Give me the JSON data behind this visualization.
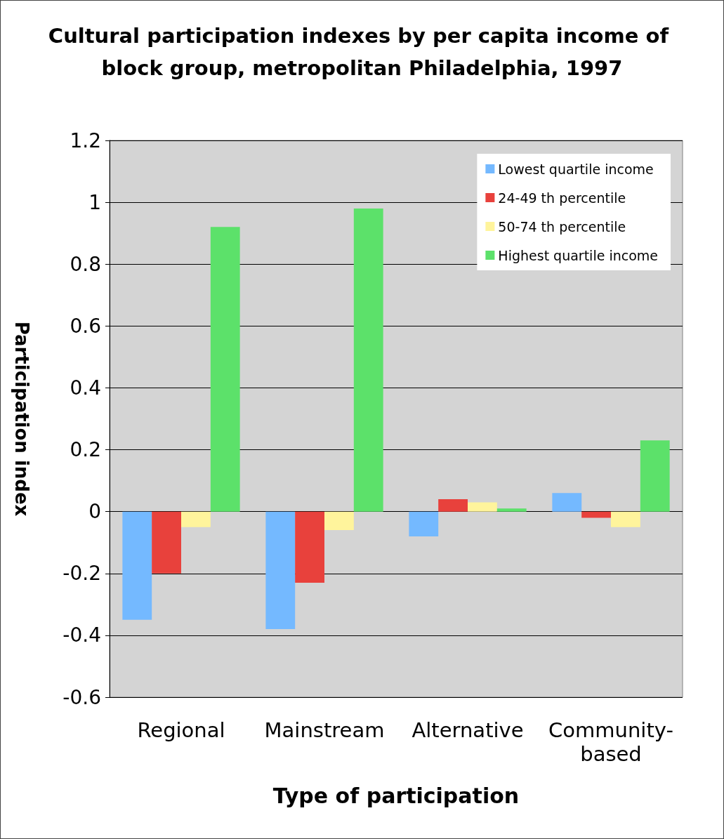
{
  "chart_data": {
    "type": "bar",
    "title": "Cultural participation indexes by per capita income of block group, metropolitan Philadelphia, 1997",
    "xlabel": "Type of participation",
    "ylabel": "Participation index",
    "categories": [
      "Regional",
      "Mainstream",
      "Alternative",
      "Community-based"
    ],
    "series": [
      {
        "name": "Lowest quartile income",
        "color": "#74b9ff",
        "values": [
          -0.35,
          -0.38,
          -0.08,
          0.06
        ]
      },
      {
        "name": "24-49 th percentile",
        "color": "#e8413c",
        "values": [
          -0.2,
          -0.23,
          0.04,
          -0.02
        ]
      },
      {
        "name": "50-74 th percentile",
        "color": "#fff49c",
        "values": [
          -0.05,
          -0.06,
          0.03,
          -0.05
        ]
      },
      {
        "name": "Highest quartile income",
        "color": "#5ce16a",
        "values": [
          0.92,
          0.98,
          0.01,
          0.23
        ]
      }
    ],
    "ylim": [
      -0.6,
      1.2
    ],
    "yticks": [
      -0.6,
      -0.4,
      -0.2,
      0,
      0.2,
      0.4,
      0.6,
      0.8,
      1,
      1.2
    ],
    "grid": "y",
    "legend": "top right"
  }
}
